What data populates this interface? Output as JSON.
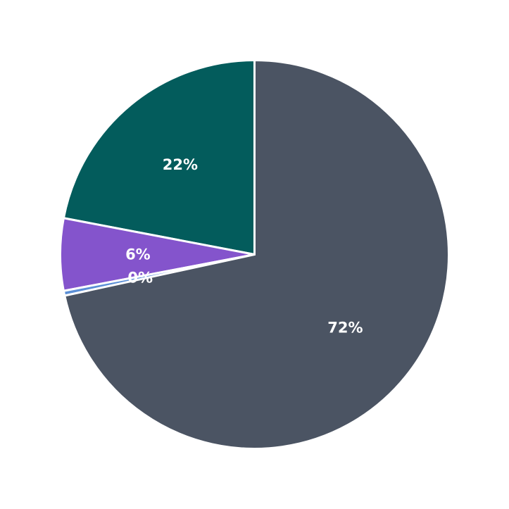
{
  "chart_data": {
    "type": "pie",
    "title": "",
    "start_angle_deg": 90,
    "direction": "counterclockwise",
    "label_format": "percent",
    "slices": [
      {
        "value": 22,
        "label": "22%",
        "color": "#035c5c"
      },
      {
        "value": 6,
        "label": "6%",
        "color": "#8454cc"
      },
      {
        "value": 0.4,
        "label": "0%",
        "color": "#5b8fd6"
      },
      {
        "value": 71.6,
        "label": "72%",
        "color": "#4b5463"
      }
    ]
  }
}
